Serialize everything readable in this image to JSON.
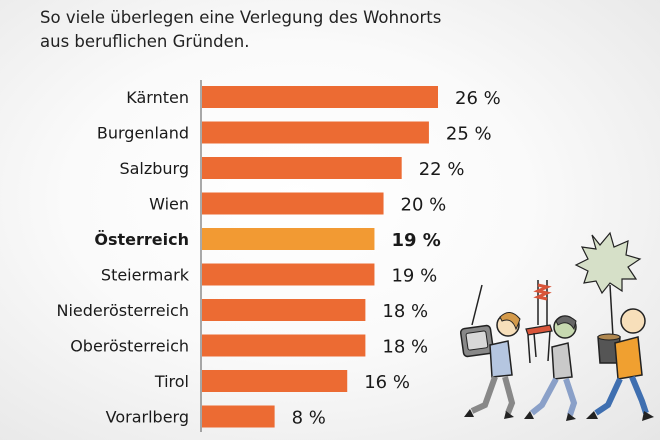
{
  "title": "So viele überlegen eine Verlegung des Wohnorts aus beruflichen Gründen.",
  "chart_data": {
    "type": "bar",
    "orientation": "horizontal",
    "title": "So viele überlegen eine Verlegung des Wohnorts aus beruflichen Gründen.",
    "categories": [
      "Kärnten",
      "Burgenland",
      "Salzburg",
      "Wien",
      "Österreich",
      "Steiermark",
      "Niederösterreich",
      "Oberösterreich",
      "Tirol",
      "Vorarlberg"
    ],
    "values": [
      26,
      25,
      22,
      20,
      19,
      19,
      18,
      18,
      16,
      8
    ],
    "labels": [
      "26 %",
      "25 %",
      "22 %",
      "20 %",
      "19 %",
      "19 %",
      "18 %",
      "18 %",
      "16 %",
      "8 %"
    ],
    "highlight": "Österreich",
    "unit": "%",
    "xlabel": "",
    "ylabel": "",
    "xlim": [
      0,
      26
    ],
    "grid": false,
    "colors": {
      "bar": "#ec6b33",
      "highlight": "#f29a33",
      "text": "#1a1a1a"
    }
  }
}
